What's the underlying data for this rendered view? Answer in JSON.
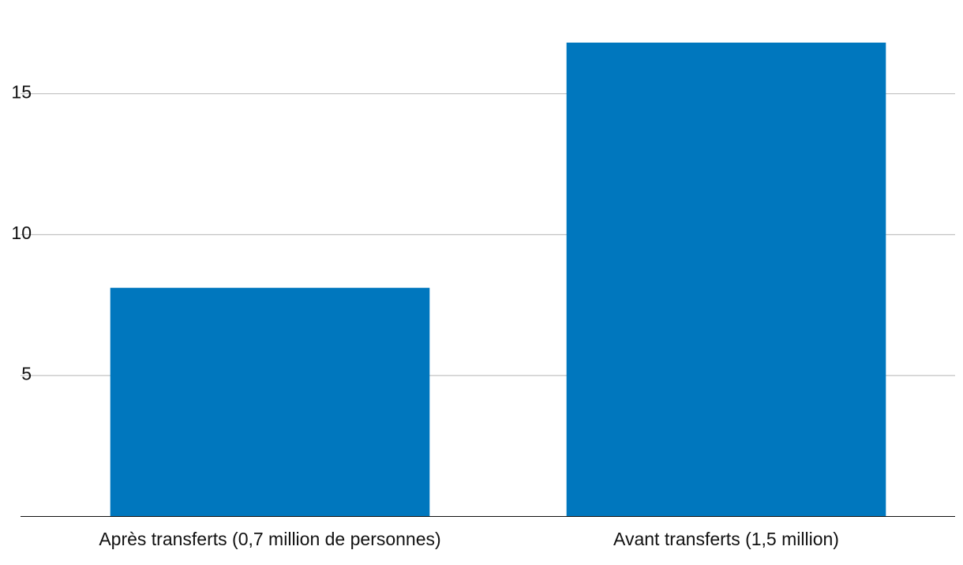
{
  "chart_data": {
    "type": "bar",
    "categories": [
      "Après transferts (0,7 million de personnes)",
      "Avant transferts (1,5 million)"
    ],
    "values": [
      8.1,
      16.8
    ],
    "color": "#0077be",
    "ylim": [
      0,
      17.5
    ],
    "yticks": [
      5,
      10,
      15
    ],
    "grid": true
  }
}
